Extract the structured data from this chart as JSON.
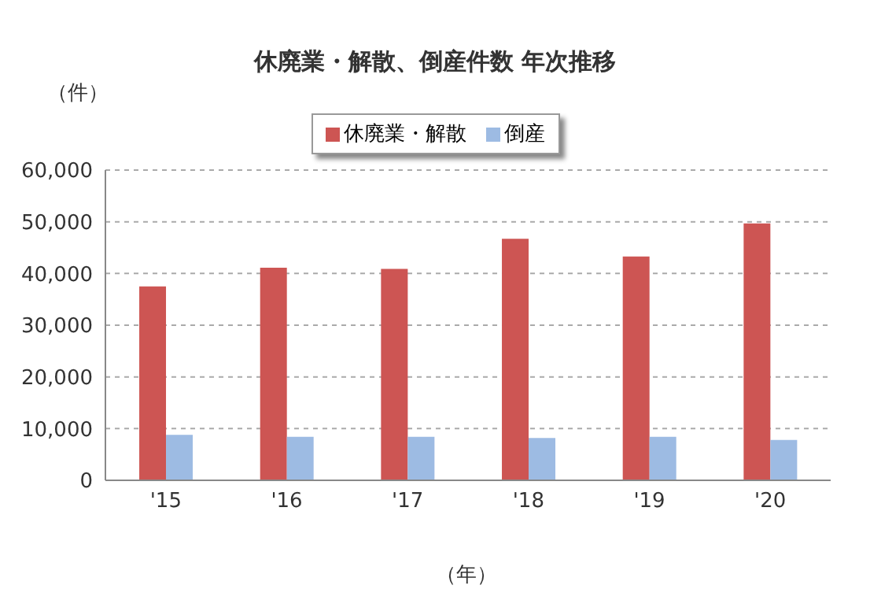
{
  "chart_data": {
    "type": "bar",
    "title": "休廃業・解散、倒産件数 年次推移",
    "ylabel": "（件）",
    "xlabel": "（年）",
    "categories": [
      "'15",
      "'16",
      "'17",
      "'18",
      "'19",
      "'20"
    ],
    "series": [
      {
        "name": "休廃業・解散",
        "color": "#cd5553",
        "values": [
          37500,
          41100,
          40900,
          46700,
          43300,
          49700
        ]
      },
      {
        "name": "倒産",
        "color": "#9dbbe3",
        "values": [
          8800,
          8400,
          8400,
          8200,
          8400,
          7800
        ]
      }
    ],
    "ylim": [
      0,
      60000
    ],
    "yticks": [
      0,
      {
        "value": 10000,
        "label": "10,000"
      },
      {
        "value": 20000,
        "label": "20,000"
      },
      {
        "value": 30000,
        "label": "30,000"
      },
      {
        "value": 40000,
        "label": "40,000"
      },
      {
        "value": 50000,
        "label": "50,000"
      },
      {
        "value": 60000,
        "label": "60,000"
      }
    ],
    "grid": "y",
    "legend": "top"
  }
}
